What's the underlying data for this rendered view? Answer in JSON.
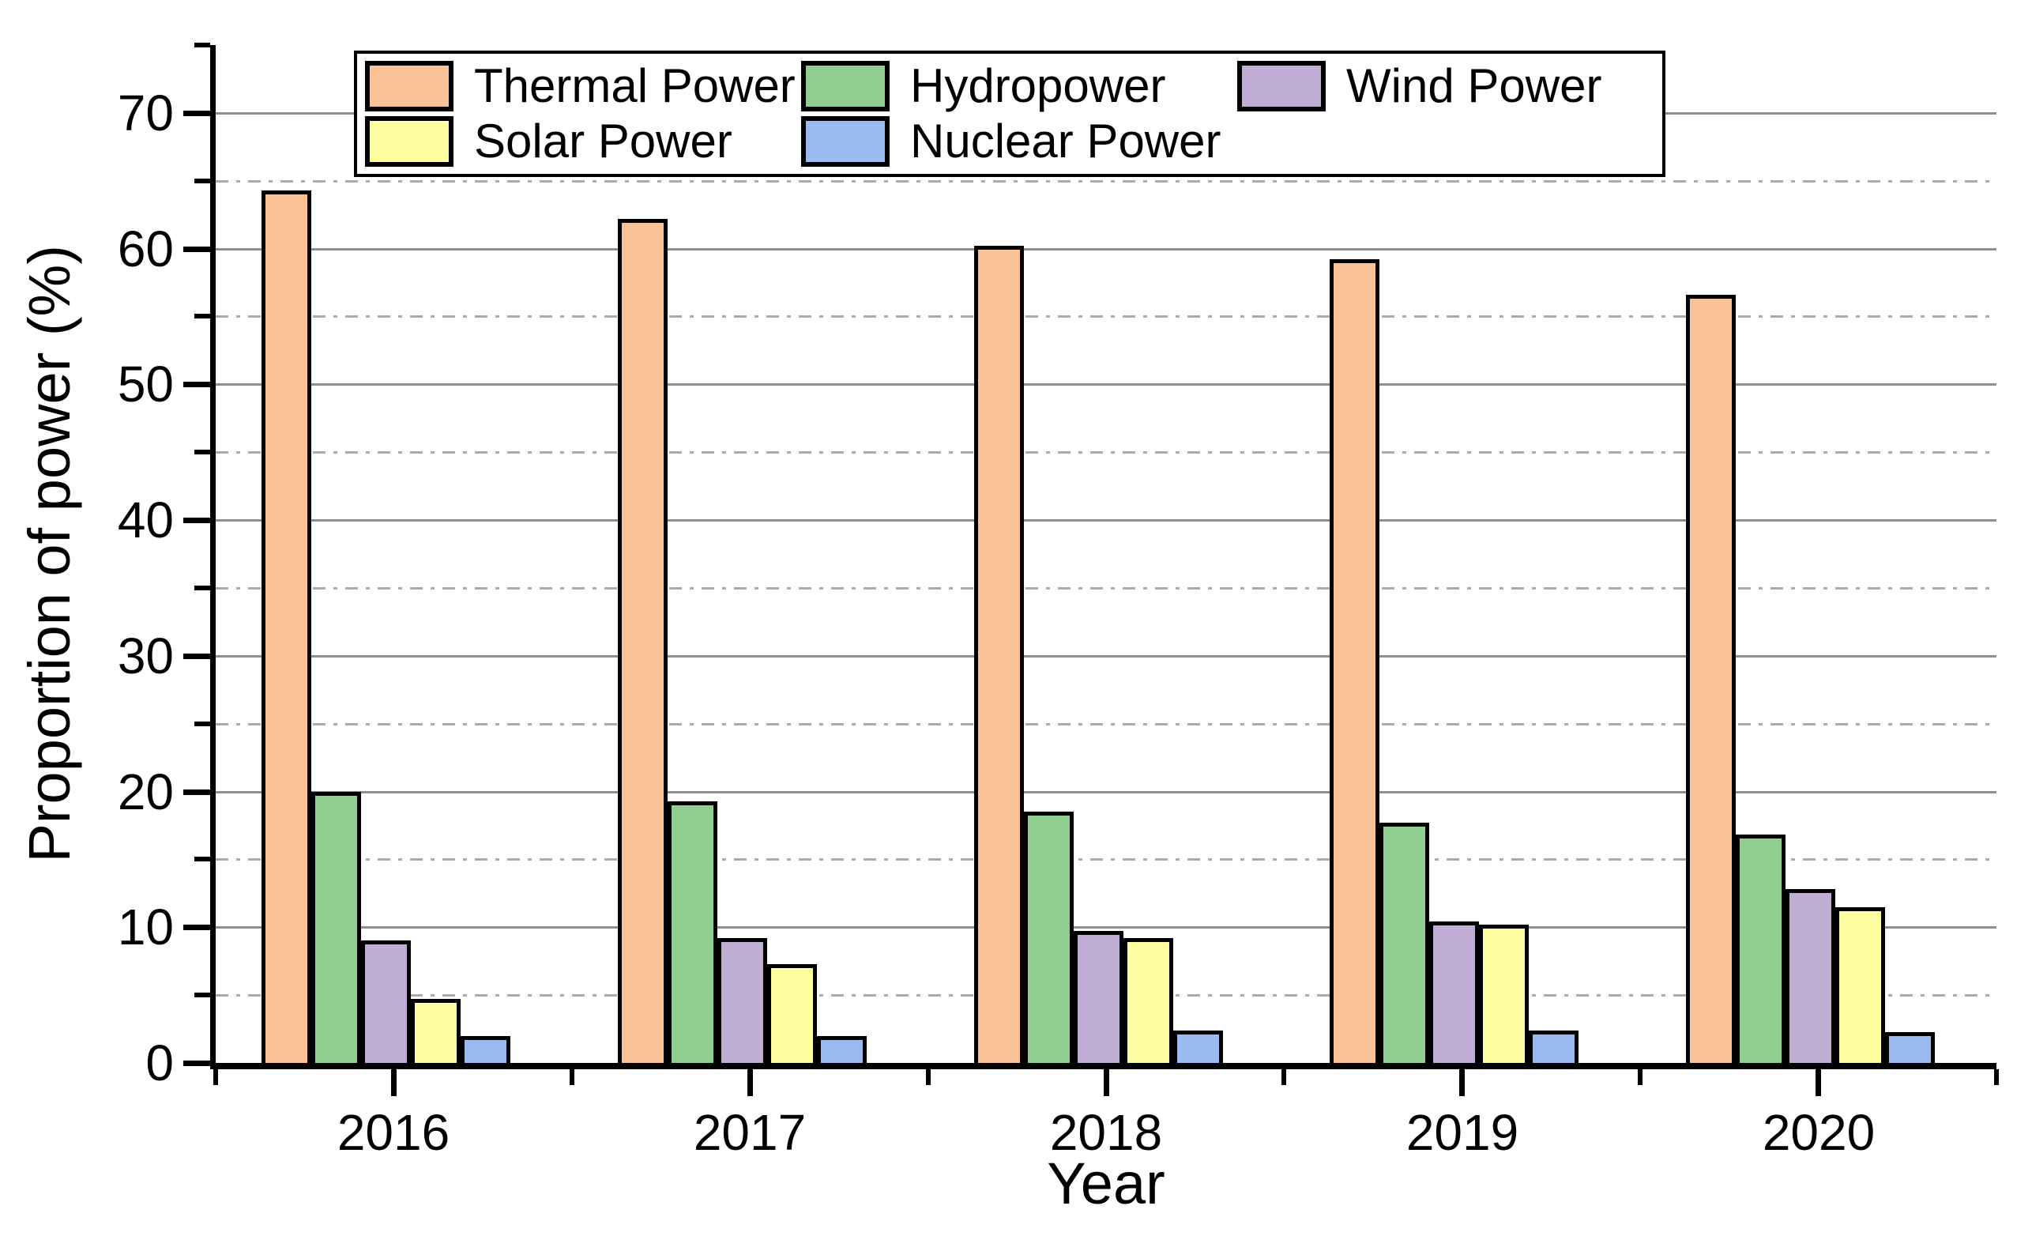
{
  "figure": {
    "x_axis_title": "Year",
    "y_axis_title": "Proportion of power (%)"
  },
  "y_axis": {
    "tick_labels": [
      "0",
      "10",
      "20",
      "30",
      "40",
      "50",
      "60",
      "70"
    ],
    "major_tick_values": [
      0,
      10,
      20,
      30,
      40,
      50,
      60,
      70
    ],
    "minor_tick_values": [
      5,
      15,
      25,
      35,
      45,
      55,
      65,
      75
    ],
    "max": 75
  },
  "x_axis": {
    "tick_labels": [
      "2016",
      "2017",
      "2018",
      "2019",
      "2020"
    ]
  },
  "legend": {
    "rows": [
      [
        "Thermal Power",
        "Hydropower",
        "Wind Power"
      ],
      [
        "Solar Power",
        "Nuclear Power"
      ]
    ]
  },
  "colors": {
    "thermal": "#FAC397",
    "hydro": "#90CE8F",
    "wind": "#C0ADD4",
    "solar": "#FEFD9F",
    "nuclear": "#99BBEF",
    "grid_major": "#8E8E8E",
    "grid_minor": "#ABABAB",
    "axis": "#000000"
  },
  "chart_data": {
    "type": "bar",
    "title": "",
    "xlabel": "Year",
    "ylabel": "Proportion of power (%)",
    "categories": [
      "2016",
      "2017",
      "2018",
      "2019",
      "2020"
    ],
    "series": [
      {
        "name": "Thermal Power",
        "color": "#FAC397",
        "values": [
          64.3,
          62.2,
          60.2,
          59.2,
          56.6
        ]
      },
      {
        "name": "Hydropower",
        "color": "#90CE8F",
        "values": [
          20.0,
          19.3,
          18.5,
          17.7,
          16.8
        ]
      },
      {
        "name": "Wind Power",
        "color": "#C0ADD4",
        "values": [
          9.0,
          9.2,
          9.7,
          10.4,
          12.8
        ]
      },
      {
        "name": "Solar Power",
        "color": "#FEFD9F",
        "values": [
          4.7,
          7.3,
          9.2,
          10.2,
          11.5
        ]
      },
      {
        "name": "Nuclear Power",
        "color": "#99BBEF",
        "values": [
          2.0,
          2.0,
          2.4,
          2.4,
          2.3
        ]
      }
    ],
    "ylim": [
      0,
      75
    ],
    "y_major_step": 10,
    "y_minor_step": 5,
    "grid": {
      "major_style": "solid",
      "minor_style": "dash-dot"
    },
    "legend_position": "inside-top",
    "bar_edge_color": "#000000"
  }
}
